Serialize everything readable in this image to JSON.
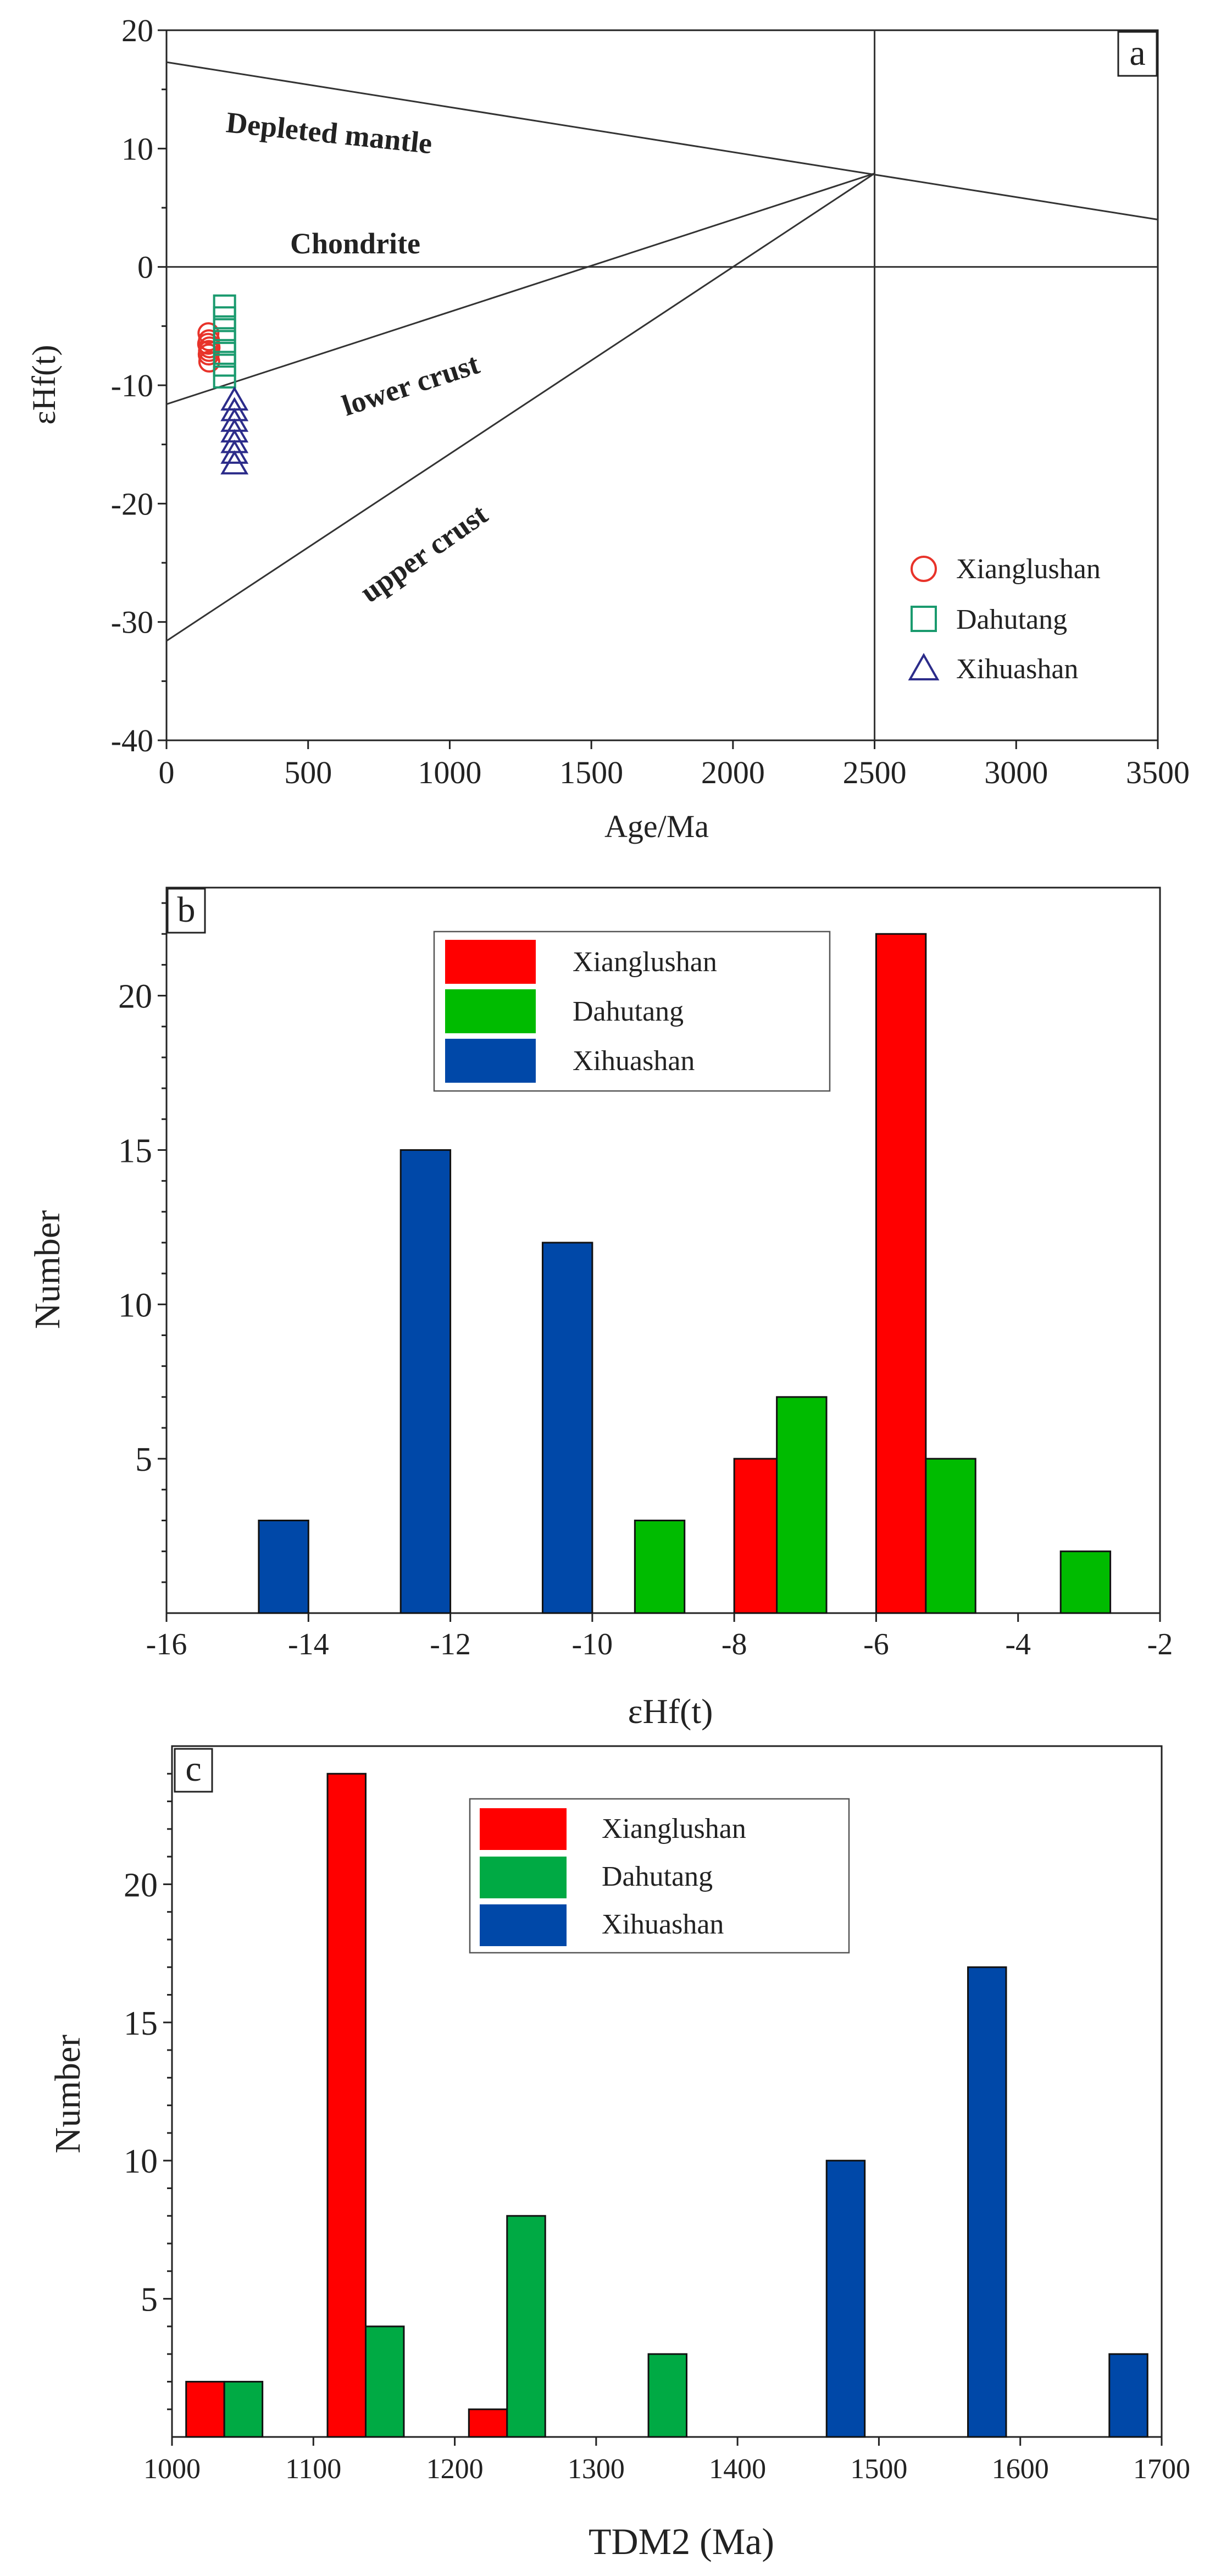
{
  "chart_data": [
    {
      "type": "scatter",
      "panel_label": "a",
      "xlabel": "Age/Ma",
      "ylabel": "εHf(t)",
      "xlim": [
        0,
        3500
      ],
      "ylim": [
        -40,
        20
      ],
      "xticks": [
        "0",
        "500",
        "1000",
        "1500",
        "2000",
        "2500",
        "3000",
        "3500"
      ],
      "yticks": [
        "20",
        "10",
        "0",
        "-10",
        "-20",
        "-30",
        "-40"
      ],
      "reference_lines": [
        {
          "name": "Depleted mantle",
          "points": [
            [
              0,
              17.3
            ],
            [
              3500,
              4
            ]
          ]
        },
        {
          "name": "Chondrite",
          "points": [
            [
              0,
              0
            ],
            [
              3500,
              0
            ]
          ]
        },
        {
          "name": "lower crust",
          "points": [
            [
              0,
              -11.6
            ],
            [
              2500,
              7.9
            ]
          ]
        },
        {
          "name": "upper crust",
          "points": [
            [
              0,
              -31.6
            ],
            [
              2500,
              7.9
            ]
          ]
        },
        {
          "name": "2500 Ma",
          "points": [
            [
              2500,
              -40
            ],
            [
              2500,
              20
            ]
          ]
        }
      ],
      "series": [
        {
          "name": "Xianglushan",
          "marker": "circle",
          "color": "#e8332a",
          "points": [
            [
              148,
              -5.6
            ],
            [
              150,
              -6.2
            ],
            [
              152,
              -6.8
            ],
            [
              149,
              -7.4
            ],
            [
              151,
              -8.0
            ],
            [
              147,
              -6.5
            ],
            [
              150,
              -7.1
            ]
          ]
        },
        {
          "name": "Dahutang",
          "marker": "square",
          "color": "#1a9a6e",
          "points": [
            [
              205,
              -3.3
            ],
            [
              205,
              -4.3
            ],
            [
              205,
              -5.3
            ],
            [
              205,
              -6.3
            ],
            [
              205,
              -7.3
            ],
            [
              205,
              -8.3
            ],
            [
              205,
              -9.3
            ]
          ]
        },
        {
          "name": "Xihuashan",
          "marker": "triangle",
          "color": "#2c2c8a",
          "points": [
            [
              240,
              -11.3
            ],
            [
              240,
              -12.2
            ],
            [
              240,
              -13.1
            ],
            [
              240,
              -14.0
            ],
            [
              240,
              -14.9
            ],
            [
              240,
              -15.8
            ],
            [
              240,
              -16.7
            ]
          ]
        }
      ]
    },
    {
      "type": "bar",
      "panel_label": "b",
      "xlabel": "εHf(t)",
      "ylabel": "Number",
      "xlim": [
        -16,
        -2
      ],
      "ylim": [
        0,
        23.5
      ],
      "xticks": [
        "-16",
        "-14",
        "-12",
        "-10",
        "-8",
        "-6",
        "-4",
        "-2"
      ],
      "yticks": [
        "5",
        "10",
        "15",
        "20"
      ],
      "series": [
        {
          "name": "Xianglushan",
          "color": "#ff0000",
          "bins": [
            [
              -8,
              -7.3,
              5
            ],
            [
              -6,
              -5.3,
              22
            ]
          ]
        },
        {
          "name": "Dahutang",
          "color": "#00bb00",
          "bins": [
            [
              -9.4,
              -8.7,
              3
            ],
            [
              -7.4,
              -6.7,
              7
            ],
            [
              -5.3,
              -4.6,
              5
            ],
            [
              -3.4,
              -2.7,
              2
            ]
          ]
        },
        {
          "name": "Xihuashan",
          "color": "#0048a8",
          "bins": [
            [
              -14.7,
              -14,
              3
            ],
            [
              -12.7,
              -12,
              15
            ],
            [
              -10.7,
              -10,
              12
            ]
          ]
        }
      ]
    },
    {
      "type": "bar",
      "panel_label": "c",
      "xlabel": "TDM2 (Ma)",
      "ylabel": "Number",
      "xlim": [
        1000,
        1700
      ],
      "ylim": [
        0,
        25
      ],
      "xticks": [
        "1000",
        "1100",
        "1200",
        "1300",
        "1400",
        "1500",
        "1600",
        "1700"
      ],
      "yticks": [
        "5",
        "10",
        "15",
        "20"
      ],
      "series": [
        {
          "name": "Xianglushan",
          "color": "#ff0000",
          "bins": [
            [
              1010,
              1037,
              2
            ],
            [
              1110,
              1137,
              24
            ],
            [
              1210,
              1237,
              1
            ]
          ]
        },
        {
          "name": "Dahutang",
          "color": "#00aa44",
          "bins": [
            [
              1037,
              1064,
              2
            ],
            [
              1137,
              1164,
              4
            ],
            [
              1237,
              1264,
              8
            ],
            [
              1337,
              1364,
              3
            ]
          ]
        },
        {
          "name": "Xihuashan",
          "color": "#0048a8",
          "bins": [
            [
              1463,
              1490,
              10
            ],
            [
              1563,
              1590,
              17
            ],
            [
              1663,
              1690,
              3
            ]
          ]
        }
      ]
    }
  ]
}
